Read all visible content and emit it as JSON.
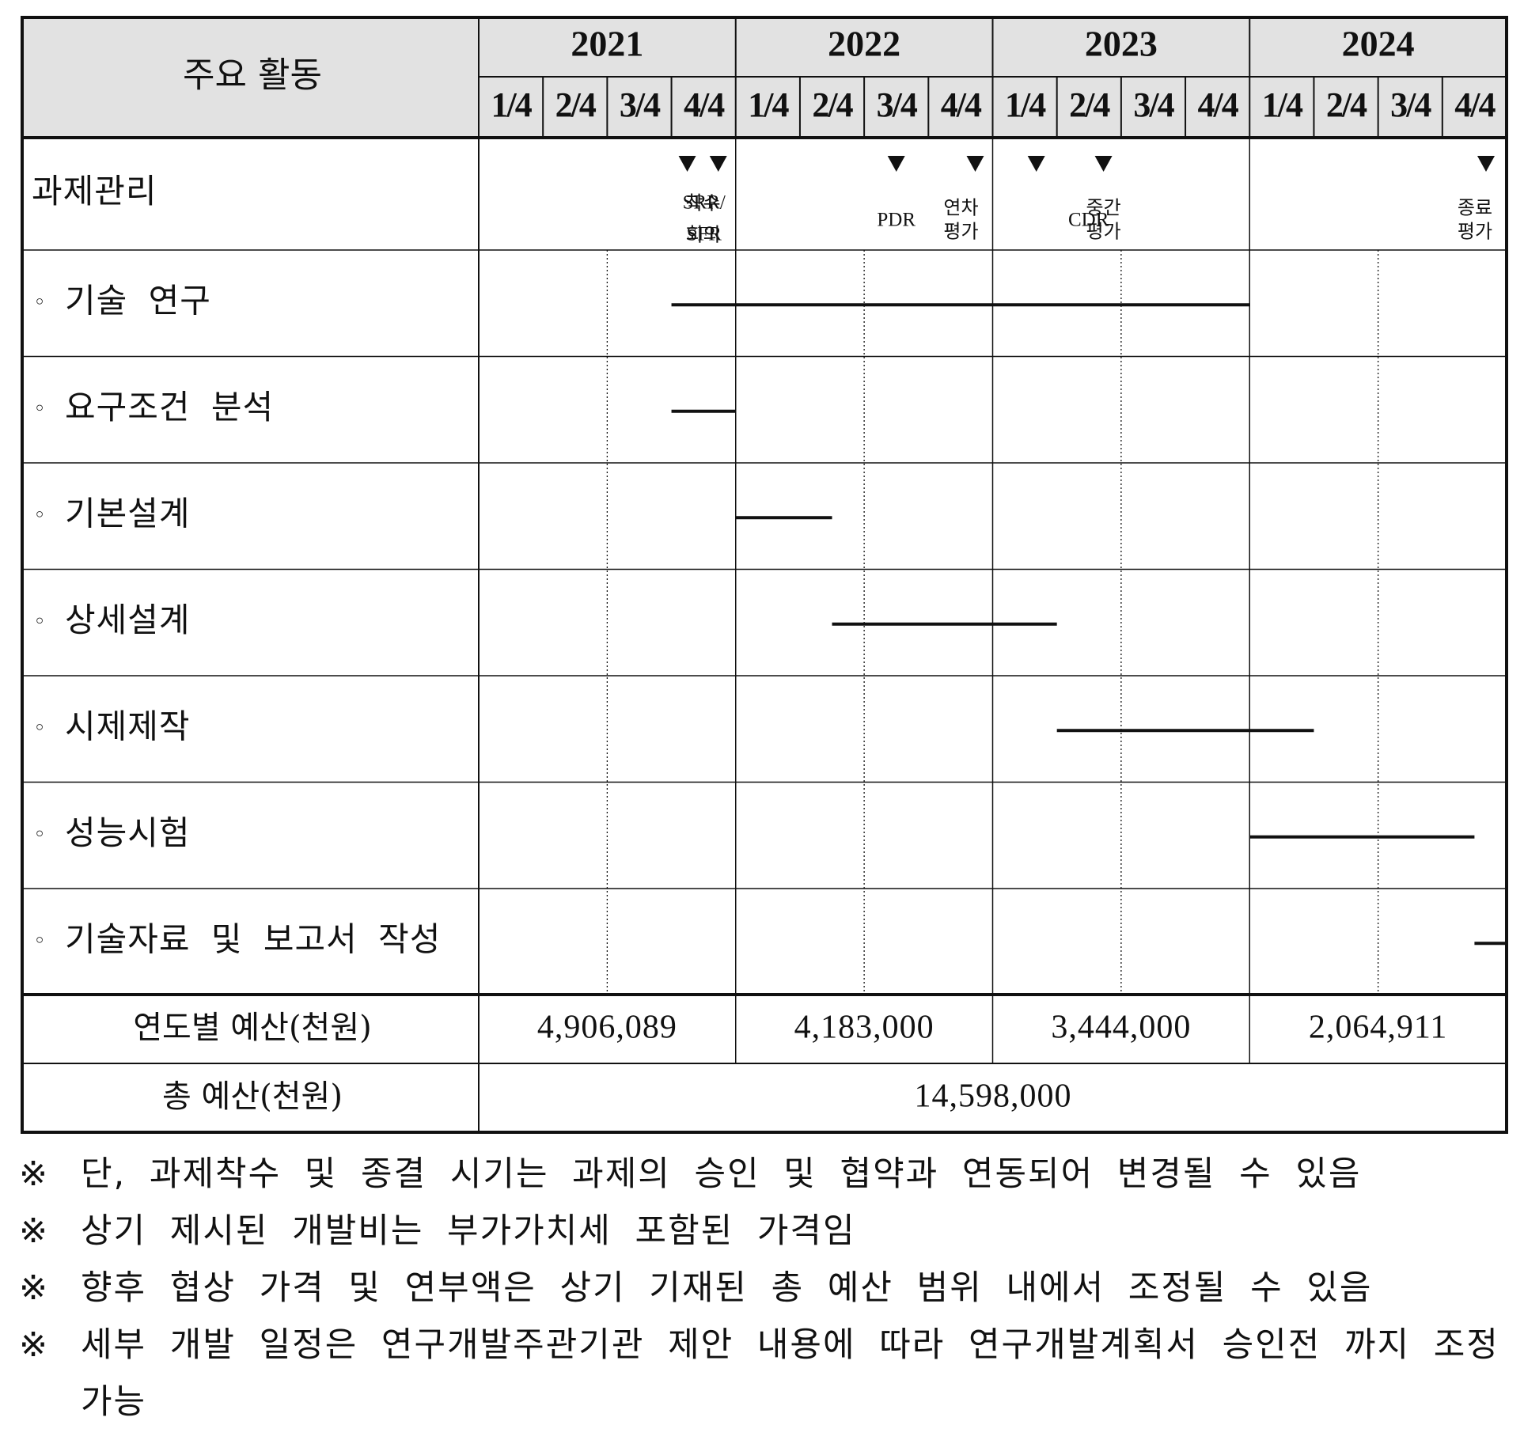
{
  "header": {
    "activity_label": "주요 활동",
    "years": [
      "2021",
      "2022",
      "2023",
      "2024"
    ],
    "quarter_labels": [
      "1/4",
      "2/4",
      "3/4",
      "4/4"
    ]
  },
  "milestones": [
    {
      "name": "milestone-kickoff",
      "label_lines": [
        "착수",
        "회의"
      ],
      "quarter": 3
    },
    {
      "name": "milestone-srr-sfr",
      "label_lines": [
        "SRR/",
        "SFR"
      ],
      "quarter": 4
    },
    {
      "name": "milestone-pdr",
      "label_lines": [
        "PDR"
      ],
      "quarter": 6.5
    },
    {
      "name": "milestone-annual-review",
      "label_lines": [
        "연차",
        "평가"
      ],
      "quarter": 8
    },
    {
      "name": "milestone-cdr",
      "label_lines": [
        "CDR"
      ],
      "quarter": 9
    },
    {
      "name": "milestone-midterm-review",
      "label_lines": [
        "중간",
        "평가"
      ],
      "quarter": 9.75
    },
    {
      "name": "milestone-final-review",
      "label_lines": [
        "종료",
        "평가"
      ],
      "quarter": 16
    }
  ],
  "activities": [
    {
      "label": "과제관리",
      "bullet": ""
    },
    {
      "label": "기술 연구",
      "bullet": "◦",
      "start_quarter": 3,
      "end_quarter": 12
    },
    {
      "label": "요구조건 분석",
      "bullet": "◦",
      "start_quarter": 3,
      "end_quarter": 4
    },
    {
      "label": "기본설계",
      "bullet": "◦",
      "start_quarter": 4,
      "end_quarter": 5.5
    },
    {
      "label": "상세설계",
      "bullet": "◦",
      "start_quarter": 5.5,
      "end_quarter": 9
    },
    {
      "label": "시제제작",
      "bullet": "◦",
      "start_quarter": 9,
      "end_quarter": 13
    },
    {
      "label": "성능시험",
      "bullet": "◦",
      "start_quarter": 12,
      "end_quarter": 15.5
    },
    {
      "label": "기술자료 및 보고서 작성",
      "bullet": "◦",
      "start_quarter": 15.5,
      "end_quarter": 16
    }
  ],
  "budget": {
    "annual_label": "연도별 예산(천원)",
    "annual_values": [
      "4,906,089",
      "4,183,000",
      "3,444,000",
      "2,064,911"
    ],
    "total_label": "총 예산(천원)",
    "total_value": "14,598,000"
  },
  "notes": [
    {
      "mark": "※",
      "text": "단, 과제착수 및 종결 시기는 과제의 승인 및 협약과 연동되어 변경될 수 있음"
    },
    {
      "mark": "※",
      "text": "상기 제시된 개발비는 부가가치세 포함된 가격임"
    },
    {
      "mark": "※",
      "text": "향후 협상 가격 및 연부액은 상기 기재된 총 예산 범위 내에서 조정될 수 있음"
    },
    {
      "mark": "※",
      "text": "세부 개발 일정은 연구개발주관기관 제안 내용에 따라 연구개발계획서 승인전 까지 조정 가능"
    }
  ]
}
